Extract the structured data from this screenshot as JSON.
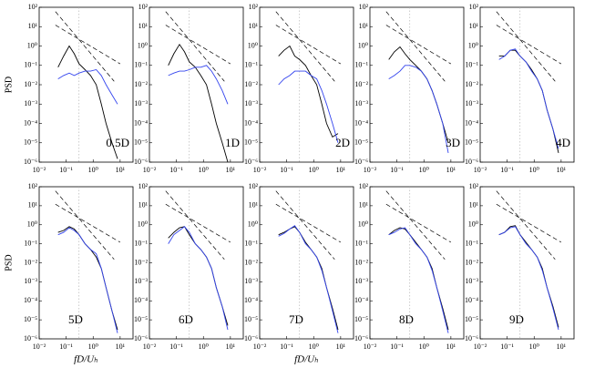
{
  "ylabel": "PSD",
  "xlabel": "fD/Uₕ",
  "axes": {
    "log_x": true,
    "log_y": true,
    "xlim": [
      0.01,
      30
    ],
    "ylim": [
      1e-06,
      100
    ],
    "xticks": [
      {
        "value": 0.01,
        "label": "10⁻²"
      },
      {
        "value": 0.1,
        "label": "10⁻¹"
      },
      {
        "value": 1,
        "label": "10⁰"
      },
      {
        "value": 10,
        "label": "10¹"
      }
    ],
    "yticks": [
      {
        "value": 100,
        "label": "10²"
      },
      {
        "value": 10,
        "label": "10¹"
      },
      {
        "value": 1,
        "label": "10⁰"
      },
      {
        "value": 0.1,
        "label": "10⁻¹"
      },
      {
        "value": 0.01,
        "label": "10⁻²"
      },
      {
        "value": 0.001,
        "label": "10⁻³"
      },
      {
        "value": 0.0001,
        "label": "10⁻⁴"
      },
      {
        "value": 1e-05,
        "label": "10⁻⁵"
      },
      {
        "value": 1e-06,
        "label": "10⁻⁶"
      }
    ]
  },
  "reference_lines": [
    {
      "x": [
        0.04,
        10
      ],
      "values": [
        12,
        0.12
      ]
    },
    {
      "x": [
        0.04,
        6
      ],
      "values": [
        60,
        0.015
      ]
    }
  ],
  "vline": 0.3,
  "chart_data": [
    {
      "type": "line",
      "annotation": "0.5D",
      "x": [
        0.05,
        0.08,
        0.13,
        0.2,
        0.3,
        0.5,
        0.8,
        1.3,
        2,
        3,
        5,
        8
      ],
      "series": [
        {
          "color": "#000000",
          "values": [
            0.08,
            0.3,
            1.0,
            0.4,
            0.12,
            0.06,
            0.03,
            0.01,
            0.001,
            0.0001,
            1e-05,
            1.5e-06
          ]
        },
        {
          "color": "#3344ee",
          "values": [
            0.02,
            0.03,
            0.04,
            0.03,
            0.04,
            0.05,
            0.05,
            0.06,
            0.03,
            0.01,
            0.003,
            0.001
          ]
        }
      ]
    },
    {
      "type": "line",
      "annotation": "1D",
      "x": [
        0.05,
        0.08,
        0.13,
        0.2,
        0.3,
        0.5,
        0.8,
        1.3,
        2,
        3,
        5,
        8
      ],
      "series": [
        {
          "color": "#000000",
          "values": [
            0.1,
            0.4,
            1.2,
            0.5,
            0.15,
            0.08,
            0.03,
            0.01,
            0.001,
            0.0001,
            1e-05,
            1e-06
          ]
        },
        {
          "color": "#3344ee",
          "values": [
            0.03,
            0.04,
            0.05,
            0.05,
            0.06,
            0.08,
            0.08,
            0.1,
            0.05,
            0.02,
            0.005,
            0.001
          ]
        }
      ]
    },
    {
      "type": "line",
      "annotation": "2D",
      "x": [
        0.05,
        0.08,
        0.13,
        0.2,
        0.3,
        0.5,
        0.8,
        1.3,
        2,
        3,
        5,
        8
      ],
      "series": [
        {
          "color": "#000000",
          "values": [
            0.3,
            0.6,
            1.0,
            0.3,
            0.2,
            0.1,
            0.03,
            0.01,
            0.001,
            0.0001,
            2e-05,
            3e-05
          ]
        },
        {
          "color": "#3344ee",
          "values": [
            0.01,
            0.02,
            0.03,
            0.05,
            0.05,
            0.05,
            0.03,
            0.02,
            0.005,
            0.001,
            0.0001,
            1e-05
          ]
        }
      ]
    },
    {
      "type": "line",
      "annotation": "3D",
      "x": [
        0.05,
        0.08,
        0.13,
        0.2,
        0.3,
        0.5,
        0.8,
        1.3,
        2,
        3,
        5,
        8
      ],
      "series": [
        {
          "color": "#000000",
          "values": [
            0.2,
            0.5,
            0.9,
            0.4,
            0.2,
            0.1,
            0.05,
            0.02,
            0.005,
            0.001,
            0.0001,
            1e-05
          ]
        },
        {
          "color": "#3344ee",
          "values": [
            0.02,
            0.03,
            0.05,
            0.1,
            0.1,
            0.08,
            0.05,
            0.02,
            0.005,
            0.001,
            0.0001,
            3e-06
          ]
        }
      ]
    },
    {
      "type": "line",
      "annotation": "4D",
      "x": [
        0.05,
        0.08,
        0.13,
        0.2,
        0.3,
        0.5,
        0.8,
        1.3,
        2,
        3,
        5,
        8
      ],
      "series": [
        {
          "color": "#000000",
          "values": [
            0.3,
            0.3,
            0.6,
            0.6,
            0.3,
            0.15,
            0.06,
            0.02,
            0.005,
            0.0005,
            5e-05,
            3e-06
          ]
        },
        {
          "color": "#3344ee",
          "values": [
            0.2,
            0.3,
            0.6,
            0.7,
            0.3,
            0.15,
            0.05,
            0.02,
            0.005,
            0.0005,
            5e-05,
            5e-06
          ]
        }
      ]
    },
    {
      "type": "line",
      "annotation": "5D",
      "x": [
        0.05,
        0.08,
        0.13,
        0.2,
        0.3,
        0.5,
        0.8,
        1.3,
        2,
        3,
        5,
        8
      ],
      "series": [
        {
          "color": "#000000",
          "values": [
            0.4,
            0.5,
            0.8,
            0.6,
            0.3,
            0.1,
            0.05,
            0.02,
            0.005,
            0.0005,
            3e-05,
            3e-06
          ]
        },
        {
          "color": "#3344ee",
          "values": [
            0.3,
            0.4,
            0.7,
            0.5,
            0.3,
            0.1,
            0.05,
            0.03,
            0.005,
            0.0005,
            3e-05,
            2e-06
          ]
        }
      ]
    },
    {
      "type": "line",
      "annotation": "6D",
      "x": [
        0.05,
        0.08,
        0.13,
        0.2,
        0.3,
        0.5,
        0.8,
        1.3,
        2,
        3,
        5,
        8
      ],
      "series": [
        {
          "color": "#000000",
          "values": [
            0.2,
            0.4,
            0.7,
            0.8,
            0.3,
            0.1,
            0.05,
            0.02,
            0.005,
            0.0005,
            5e-05,
            5e-06
          ]
        },
        {
          "color": "#3344ee",
          "values": [
            0.1,
            0.3,
            0.5,
            0.8,
            0.4,
            0.1,
            0.05,
            0.02,
            0.005,
            0.0005,
            5e-05,
            3e-06
          ]
        }
      ]
    },
    {
      "type": "line",
      "annotation": "7D",
      "x": [
        0.05,
        0.08,
        0.13,
        0.2,
        0.3,
        0.5,
        0.8,
        1.3,
        2,
        3,
        5,
        8
      ],
      "series": [
        {
          "color": "#000000",
          "values": [
            0.3,
            0.4,
            0.6,
            0.8,
            0.4,
            0.12,
            0.05,
            0.02,
            0.005,
            0.0005,
            4e-05,
            3e-06
          ]
        },
        {
          "color": "#3344ee",
          "values": [
            0.25,
            0.35,
            0.6,
            0.9,
            0.4,
            0.1,
            0.05,
            0.02,
            0.004,
            0.0005,
            3e-05,
            2e-06
          ]
        }
      ]
    },
    {
      "type": "line",
      "annotation": "8D",
      "x": [
        0.05,
        0.08,
        0.13,
        0.2,
        0.3,
        0.5,
        0.8,
        1.3,
        2,
        3,
        5,
        8
      ],
      "series": [
        {
          "color": "#000000",
          "values": [
            0.3,
            0.5,
            0.7,
            0.6,
            0.3,
            0.12,
            0.05,
            0.02,
            0.005,
            0.0005,
            4e-05,
            3e-06
          ]
        },
        {
          "color": "#3344ee",
          "values": [
            0.3,
            0.4,
            0.6,
            0.7,
            0.3,
            0.1,
            0.05,
            0.02,
            0.004,
            0.0005,
            3e-05,
            2e-06
          ]
        }
      ]
    },
    {
      "type": "line",
      "annotation": "9D",
      "x": [
        0.05,
        0.08,
        0.13,
        0.2,
        0.3,
        0.5,
        0.8,
        1.3,
        2,
        3,
        5,
        8
      ],
      "series": [
        {
          "color": "#000000",
          "values": [
            0.3,
            0.4,
            0.8,
            0.9,
            0.3,
            0.12,
            0.05,
            0.02,
            0.005,
            0.0005,
            5e-05,
            4e-06
          ]
        },
        {
          "color": "#3344ee",
          "values": [
            0.3,
            0.4,
            0.7,
            0.8,
            0.3,
            0.1,
            0.05,
            0.02,
            0.004,
            0.0005,
            4e-05,
            3e-06
          ]
        }
      ]
    }
  ]
}
